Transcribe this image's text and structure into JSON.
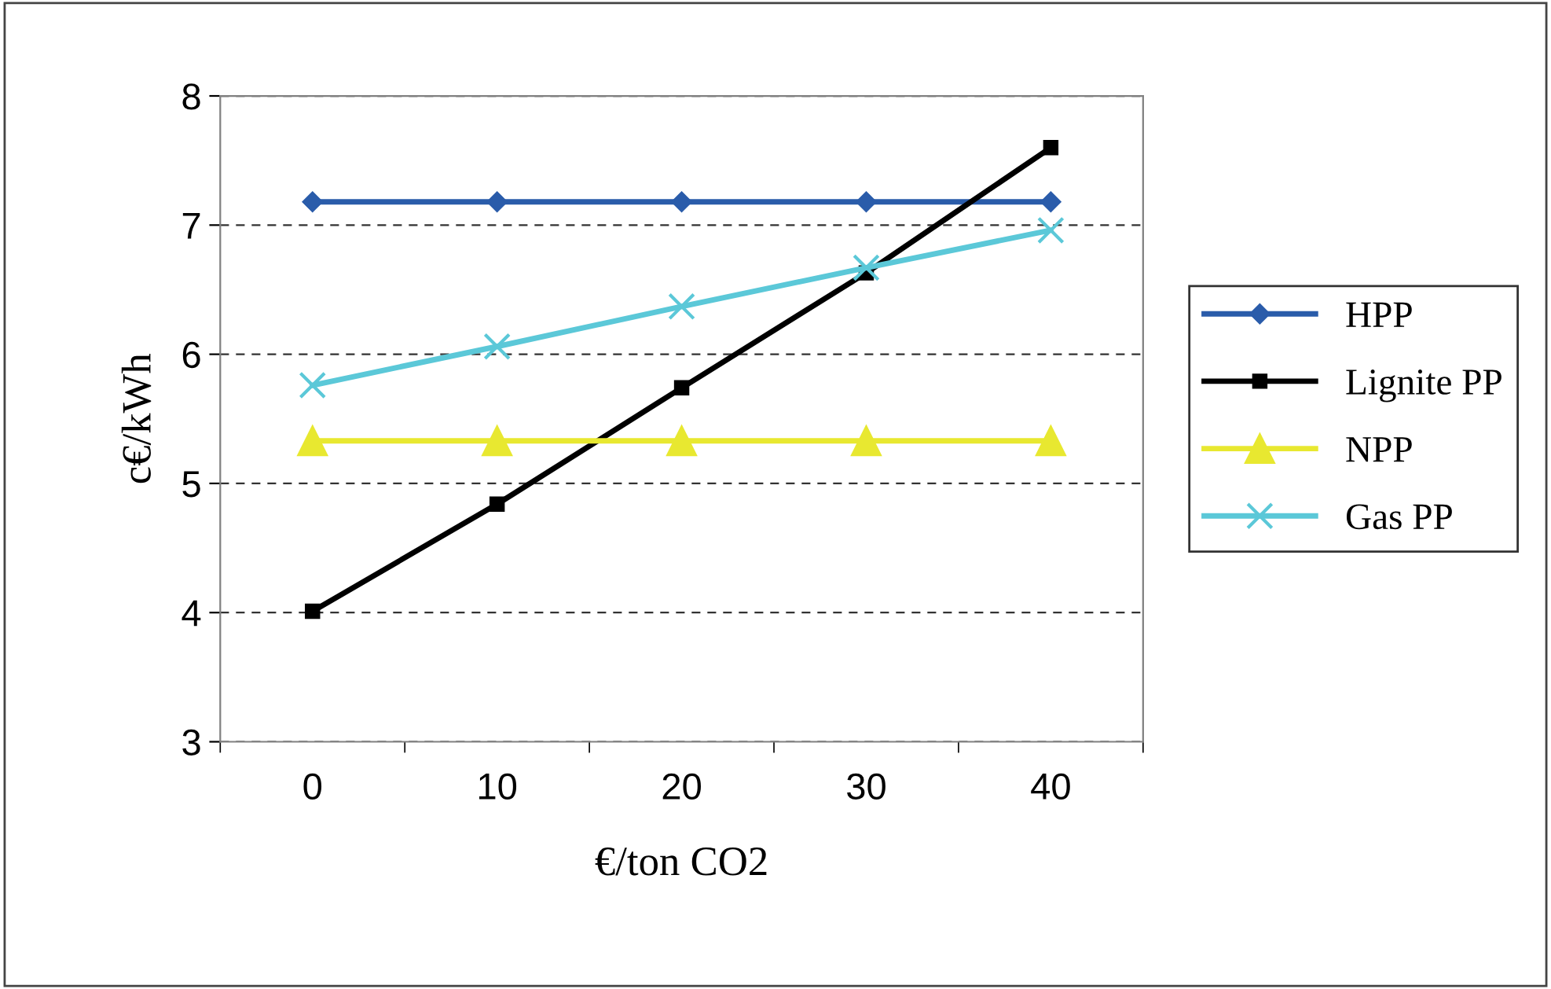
{
  "chart_data": {
    "type": "line",
    "xlabel": "€/ton CO2",
    "ylabel": "c€/kWh",
    "categories": [
      "0",
      "10",
      "20",
      "30",
      "40"
    ],
    "ylim": [
      3,
      8
    ],
    "yticks": [
      3,
      4,
      5,
      6,
      7,
      8
    ],
    "grid": "y",
    "legend": "right",
    "series": [
      {
        "name": "HPP",
        "color": "#2a5caa",
        "marker": "diamond",
        "values": [
          7.18,
          7.18,
          7.18,
          7.18,
          7.18
        ]
      },
      {
        "name": "Lignite PP",
        "color": "#000000",
        "marker": "square",
        "values": [
          4.01,
          4.84,
          5.74,
          6.63,
          7.6
        ]
      },
      {
        "name": "NPP",
        "color": "#e8e830",
        "marker": "triangle",
        "values": [
          5.33,
          5.33,
          5.33,
          5.33,
          5.33
        ]
      },
      {
        "name": "Gas PP",
        "color": "#5bc8d8",
        "marker": "cross",
        "values": [
          5.76,
          6.06,
          6.37,
          6.67,
          6.96
        ]
      }
    ]
  }
}
